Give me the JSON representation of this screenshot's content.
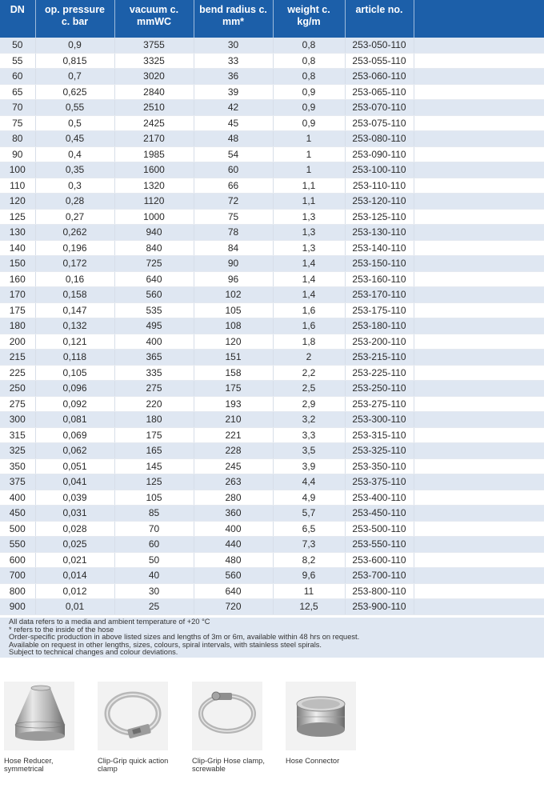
{
  "table": {
    "headers": [
      {
        "line1": "DN",
        "line2": ""
      },
      {
        "line1": "op. pressure",
        "line2": "c. bar"
      },
      {
        "line1": "vacuum c.",
        "line2": "mmWC"
      },
      {
        "line1": "bend radius c.",
        "line2": "mm*"
      },
      {
        "line1": "weight c.",
        "line2": "kg/m"
      },
      {
        "line1": "article no.",
        "line2": ""
      },
      {
        "line1": "",
        "line2": ""
      }
    ],
    "rows": [
      [
        "50",
        "0,9",
        "3755",
        "30",
        "0,8",
        "253-050-110",
        ""
      ],
      [
        "55",
        "0,815",
        "3325",
        "33",
        "0,8",
        "253-055-110",
        ""
      ],
      [
        "60",
        "0,7",
        "3020",
        "36",
        "0,8",
        "253-060-110",
        ""
      ],
      [
        "65",
        "0,625",
        "2840",
        "39",
        "0,9",
        "253-065-110",
        ""
      ],
      [
        "70",
        "0,55",
        "2510",
        "42",
        "0,9",
        "253-070-110",
        ""
      ],
      [
        "75",
        "0,5",
        "2425",
        "45",
        "0,9",
        "253-075-110",
        ""
      ],
      [
        "80",
        "0,45",
        "2170",
        "48",
        "1",
        "253-080-110",
        ""
      ],
      [
        "90",
        "0,4",
        "1985",
        "54",
        "1",
        "253-090-110",
        ""
      ],
      [
        "100",
        "0,35",
        "1600",
        "60",
        "1",
        "253-100-110",
        ""
      ],
      [
        "110",
        "0,3",
        "1320",
        "66",
        "1,1",
        "253-110-110",
        ""
      ],
      [
        "120",
        "0,28",
        "1120",
        "72",
        "1,1",
        "253-120-110",
        ""
      ],
      [
        "125",
        "0,27",
        "1000",
        "75",
        "1,3",
        "253-125-110",
        ""
      ],
      [
        "130",
        "0,262",
        "940",
        "78",
        "1,3",
        "253-130-110",
        ""
      ],
      [
        "140",
        "0,196",
        "840",
        "84",
        "1,3",
        "253-140-110",
        ""
      ],
      [
        "150",
        "0,172",
        "725",
        "90",
        "1,4",
        "253-150-110",
        ""
      ],
      [
        "160",
        "0,16",
        "640",
        "96",
        "1,4",
        "253-160-110",
        ""
      ],
      [
        "170",
        "0,158",
        "560",
        "102",
        "1,4",
        "253-170-110",
        ""
      ],
      [
        "175",
        "0,147",
        "535",
        "105",
        "1,6",
        "253-175-110",
        ""
      ],
      [
        "180",
        "0,132",
        "495",
        "108",
        "1,6",
        "253-180-110",
        ""
      ],
      [
        "200",
        "0,121",
        "400",
        "120",
        "1,8",
        "253-200-110",
        ""
      ],
      [
        "215",
        "0,118",
        "365",
        "151",
        "2",
        "253-215-110",
        ""
      ],
      [
        "225",
        "0,105",
        "335",
        "158",
        "2,2",
        "253-225-110",
        ""
      ],
      [
        "250",
        "0,096",
        "275",
        "175",
        "2,5",
        "253-250-110",
        ""
      ],
      [
        "275",
        "0,092",
        "220",
        "193",
        "2,9",
        "253-275-110",
        ""
      ],
      [
        "300",
        "0,081",
        "180",
        "210",
        "3,2",
        "253-300-110",
        ""
      ],
      [
        "315",
        "0,069",
        "175",
        "221",
        "3,3",
        "253-315-110",
        ""
      ],
      [
        "325",
        "0,062",
        "165",
        "228",
        "3,5",
        "253-325-110",
        ""
      ],
      [
        "350",
        "0,051",
        "145",
        "245",
        "3,9",
        "253-350-110",
        ""
      ],
      [
        "375",
        "0,041",
        "125",
        "263",
        "4,4",
        "253-375-110",
        ""
      ],
      [
        "400",
        "0,039",
        "105",
        "280",
        "4,9",
        "253-400-110",
        ""
      ],
      [
        "450",
        "0,031",
        "85",
        "360",
        "5,7",
        "253-450-110",
        ""
      ],
      [
        "500",
        "0,028",
        "70",
        "400",
        "6,5",
        "253-500-110",
        ""
      ],
      [
        "550",
        "0,025",
        "60",
        "440",
        "7,3",
        "253-550-110",
        ""
      ],
      [
        "600",
        "0,021",
        "50",
        "480",
        "8,2",
        "253-600-110",
        ""
      ],
      [
        "700",
        "0,014",
        "40",
        "560",
        "9,6",
        "253-700-110",
        ""
      ],
      [
        "800",
        "0,012",
        "30",
        "640",
        "11",
        "253-800-110",
        ""
      ],
      [
        "900",
        "0,01",
        "25",
        "720",
        "12,5",
        "253-900-110",
        ""
      ]
    ]
  },
  "notes": [
    "All data refers to a media and ambient temperature of +20 °C",
    "* refers to the inside of the hose",
    "Order-specific production in above listed sizes and lengths of 3m or 6m, available within 48 hrs on request.",
    "Available on request in other lengths, sizes, colours, spiral intervals, with stainless steel spirals.",
    "Subject to technical changes and colour deviations."
  ],
  "accessories": [
    {
      "caption": "Hose Reducer, symmetrical",
      "icon": "hose-reducer-image"
    },
    {
      "caption": "Clip-Grip quick action clamp",
      "icon": "quick-action-clamp-image"
    },
    {
      "caption": "Clip-Grip Hose clamp, screwable",
      "icon": "screw-hose-clamp-image"
    },
    {
      "caption": "Hose Connector",
      "icon": "hose-connector-image"
    }
  ],
  "colors": {
    "header": "#1c5fa9",
    "row_alt": "#dfe7f2"
  }
}
